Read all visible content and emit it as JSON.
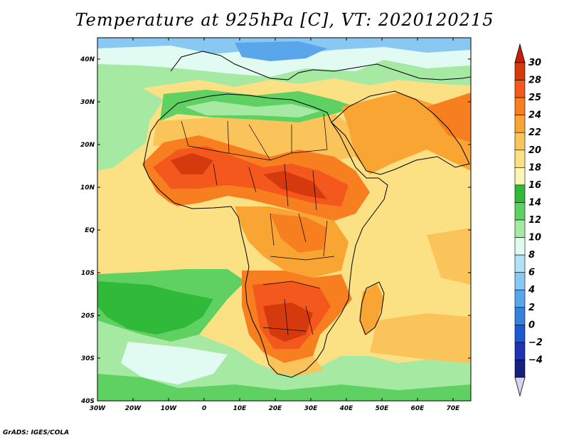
{
  "title": "Temperature at 925hPa [C], VT: 2020120215",
  "credit": "GrADS: IGES/COLA",
  "map": {
    "lon_range": [
      -30,
      75
    ],
    "lat_range": [
      -40,
      45
    ],
    "lon_ticks": [
      {
        "lon": -30,
        "label": "30W"
      },
      {
        "lon": -20,
        "label": "20W"
      },
      {
        "lon": -10,
        "label": "10W"
      },
      {
        "lon": 0,
        "label": "0"
      },
      {
        "lon": 10,
        "label": "10E"
      },
      {
        "lon": 20,
        "label": "20E"
      },
      {
        "lon": 30,
        "label": "30E"
      },
      {
        "lon": 40,
        "label": "40E"
      },
      {
        "lon": 50,
        "label": "50E"
      },
      {
        "lon": 60,
        "label": "60E"
      },
      {
        "lon": 70,
        "label": "70E"
      }
    ],
    "lat_ticks": [
      {
        "lat": 40,
        "label": "40N"
      },
      {
        "lat": 30,
        "label": "30N"
      },
      {
        "lat": 20,
        "label": "20N"
      },
      {
        "lat": 10,
        "label": "10N"
      },
      {
        "lat": 0,
        "label": "EQ"
      },
      {
        "lat": -10,
        "label": "10S"
      },
      {
        "lat": -20,
        "label": "20S"
      },
      {
        "lat": -30,
        "label": "30S"
      },
      {
        "lat": -40,
        "label": "40S"
      }
    ],
    "variable": "Temperature at 925hPa",
    "units": "C"
  },
  "colorbar": {
    "levels": [
      {
        "label": "30",
        "color": "#d43a0d"
      },
      {
        "label": "28",
        "color": "#f4581c"
      },
      {
        "label": "25",
        "color": "#f87f20"
      },
      {
        "label": "24",
        "color": "#f9a534"
      },
      {
        "label": "22",
        "color": "#fbc45a"
      },
      {
        "label": "20",
        "color": "#fbe084"
      },
      {
        "label": "18",
        "color": "#fbf5b6"
      },
      {
        "label": "16",
        "color": "#31b93a"
      },
      {
        "label": "14",
        "color": "#5fd163"
      },
      {
        "label": "12",
        "color": "#a6e9a2"
      },
      {
        "label": "10",
        "color": "#e1faf2"
      },
      {
        "label": "8",
        "color": "#b2e0f7"
      },
      {
        "label": "6",
        "color": "#88c8f2"
      },
      {
        "label": "4",
        "color": "#5aa6ea"
      },
      {
        "label": "2",
        "color": "#3582dc"
      },
      {
        "label": "0",
        "color": "#1d5ad2"
      },
      {
        "label": "−2",
        "color": "#1e34b4"
      },
      {
        "label": "−4",
        "color": "#16207d"
      }
    ],
    "top_color": "#c81e0a",
    "bottom_color": "#d8d4f6"
  }
}
